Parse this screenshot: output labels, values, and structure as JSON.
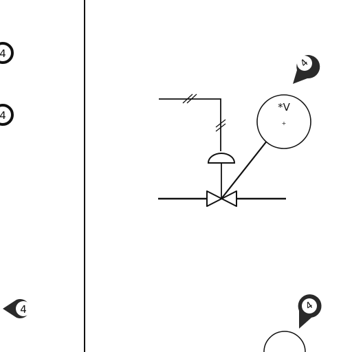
{
  "callouts": [
    {
      "id": "left-top",
      "text": "4"
    },
    {
      "id": "left-mid",
      "text": "4"
    },
    {
      "id": "left-bottom",
      "text": "4"
    },
    {
      "id": "right-top",
      "text": "4"
    },
    {
      "id": "right-bottom",
      "text": "4"
    }
  ],
  "instrument": {
    "tag": "*V",
    "center_mark": "+"
  },
  "colors": {
    "ink": "#111111",
    "paper": "#ffffff",
    "callout_fill": "#2a2a2a"
  },
  "icons": {
    "valve": "gate-valve-symbol",
    "actuator": "diaphragm-actuator-symbol",
    "signal": "pneumatic-signal-hash",
    "callout": "map-pin-callout"
  }
}
